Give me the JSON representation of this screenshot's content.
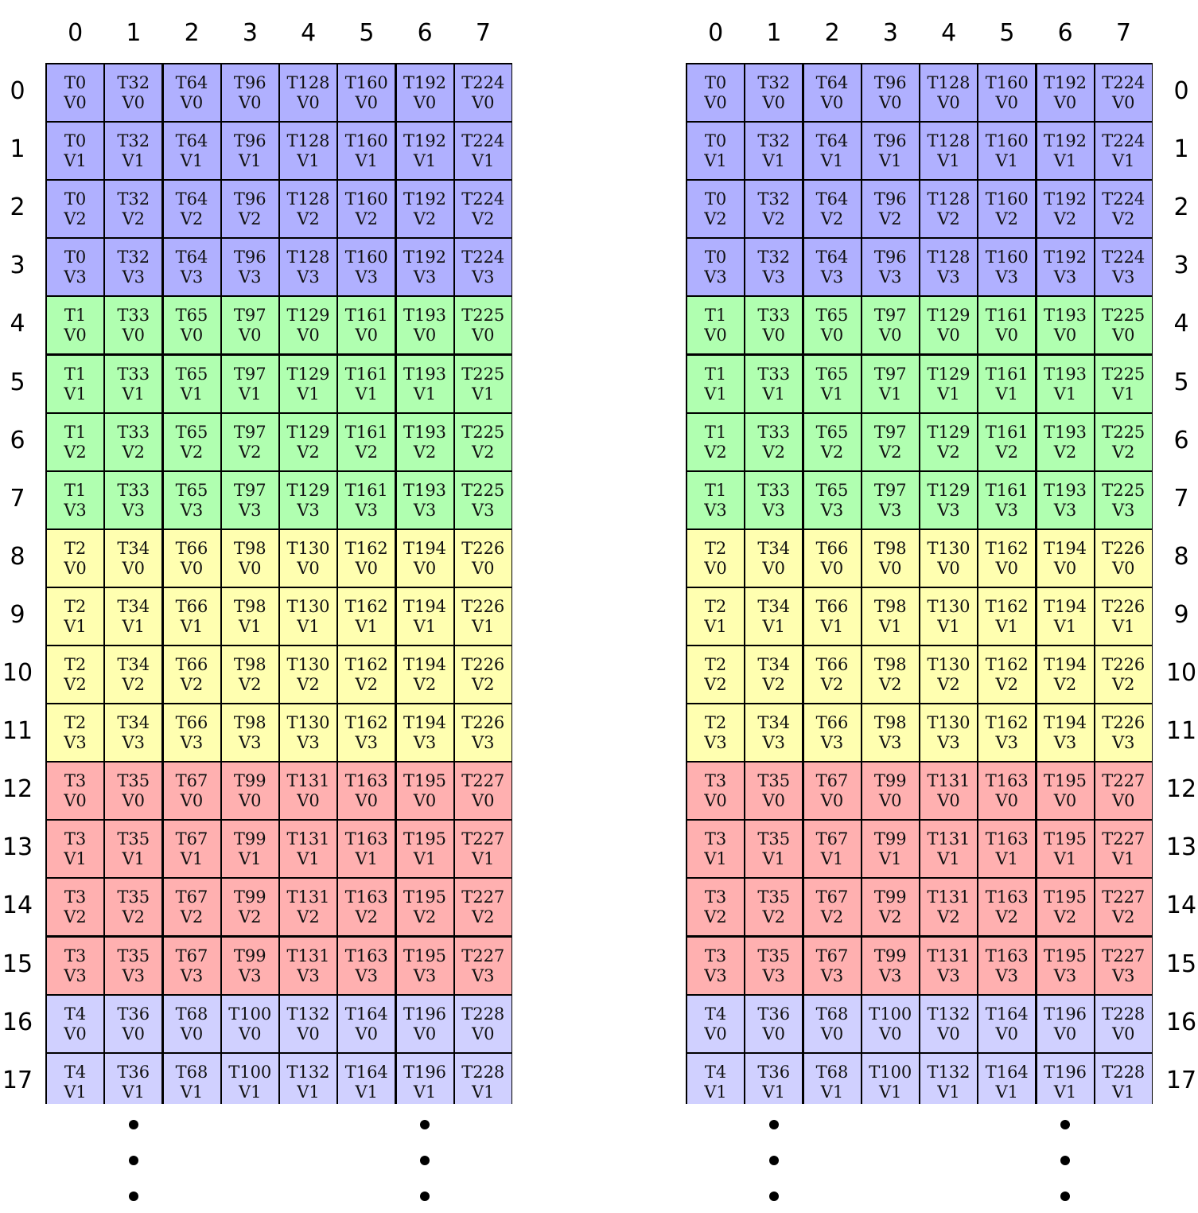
{
  "columns": [
    "0",
    "1",
    "2",
    "3",
    "4",
    "5",
    "6",
    "7"
  ],
  "rows": [
    "0",
    "1",
    "2",
    "3",
    "4",
    "5",
    "6",
    "7",
    "8",
    "9",
    "10",
    "11",
    "12",
    "13",
    "14",
    "15",
    "16",
    "17"
  ],
  "group_colors": [
    "#b0b0ff",
    "#b0ffb0",
    "#ffffb0",
    "#ffb0b0",
    "#d0d0ff"
  ],
  "cells": [
    [
      [
        "T0",
        "V0"
      ],
      [
        "T32",
        "V0"
      ],
      [
        "T64",
        "V0"
      ],
      [
        "T96",
        "V0"
      ],
      [
        "T128",
        "V0"
      ],
      [
        "T160",
        "V0"
      ],
      [
        "T192",
        "V0"
      ],
      [
        "T224",
        "V0"
      ]
    ],
    [
      [
        "T0",
        "V1"
      ],
      [
        "T32",
        "V1"
      ],
      [
        "T64",
        "V1"
      ],
      [
        "T96",
        "V1"
      ],
      [
        "T128",
        "V1"
      ],
      [
        "T160",
        "V1"
      ],
      [
        "T192",
        "V1"
      ],
      [
        "T224",
        "V1"
      ]
    ],
    [
      [
        "T0",
        "V2"
      ],
      [
        "T32",
        "V2"
      ],
      [
        "T64",
        "V2"
      ],
      [
        "T96",
        "V2"
      ],
      [
        "T128",
        "V2"
      ],
      [
        "T160",
        "V2"
      ],
      [
        "T192",
        "V2"
      ],
      [
        "T224",
        "V2"
      ]
    ],
    [
      [
        "T0",
        "V3"
      ],
      [
        "T32",
        "V3"
      ],
      [
        "T64",
        "V3"
      ],
      [
        "T96",
        "V3"
      ],
      [
        "T128",
        "V3"
      ],
      [
        "T160",
        "V3"
      ],
      [
        "T192",
        "V3"
      ],
      [
        "T224",
        "V3"
      ]
    ],
    [
      [
        "T1",
        "V0"
      ],
      [
        "T33",
        "V0"
      ],
      [
        "T65",
        "V0"
      ],
      [
        "T97",
        "V0"
      ],
      [
        "T129",
        "V0"
      ],
      [
        "T161",
        "V0"
      ],
      [
        "T193",
        "V0"
      ],
      [
        "T225",
        "V0"
      ]
    ],
    [
      [
        "T1",
        "V1"
      ],
      [
        "T33",
        "V1"
      ],
      [
        "T65",
        "V1"
      ],
      [
        "T97",
        "V1"
      ],
      [
        "T129",
        "V1"
      ],
      [
        "T161",
        "V1"
      ],
      [
        "T193",
        "V1"
      ],
      [
        "T225",
        "V1"
      ]
    ],
    [
      [
        "T1",
        "V2"
      ],
      [
        "T33",
        "V2"
      ],
      [
        "T65",
        "V2"
      ],
      [
        "T97",
        "V2"
      ],
      [
        "T129",
        "V2"
      ],
      [
        "T161",
        "V2"
      ],
      [
        "T193",
        "V2"
      ],
      [
        "T225",
        "V2"
      ]
    ],
    [
      [
        "T1",
        "V3"
      ],
      [
        "T33",
        "V3"
      ],
      [
        "T65",
        "V3"
      ],
      [
        "T97",
        "V3"
      ],
      [
        "T129",
        "V3"
      ],
      [
        "T161",
        "V3"
      ],
      [
        "T193",
        "V3"
      ],
      [
        "T225",
        "V3"
      ]
    ],
    [
      [
        "T2",
        "V0"
      ],
      [
        "T34",
        "V0"
      ],
      [
        "T66",
        "V0"
      ],
      [
        "T98",
        "V0"
      ],
      [
        "T130",
        "V0"
      ],
      [
        "T162",
        "V0"
      ],
      [
        "T194",
        "V0"
      ],
      [
        "T226",
        "V0"
      ]
    ],
    [
      [
        "T2",
        "V1"
      ],
      [
        "T34",
        "V1"
      ],
      [
        "T66",
        "V1"
      ],
      [
        "T98",
        "V1"
      ],
      [
        "T130",
        "V1"
      ],
      [
        "T162",
        "V1"
      ],
      [
        "T194",
        "V1"
      ],
      [
        "T226",
        "V1"
      ]
    ],
    [
      [
        "T2",
        "V2"
      ],
      [
        "T34",
        "V2"
      ],
      [
        "T66",
        "V2"
      ],
      [
        "T98",
        "V2"
      ],
      [
        "T130",
        "V2"
      ],
      [
        "T162",
        "V2"
      ],
      [
        "T194",
        "V2"
      ],
      [
        "T226",
        "V2"
      ]
    ],
    [
      [
        "T2",
        "V3"
      ],
      [
        "T34",
        "V3"
      ],
      [
        "T66",
        "V3"
      ],
      [
        "T98",
        "V3"
      ],
      [
        "T130",
        "V3"
      ],
      [
        "T162",
        "V3"
      ],
      [
        "T194",
        "V3"
      ],
      [
        "T226",
        "V3"
      ]
    ],
    [
      [
        "T3",
        "V0"
      ],
      [
        "T35",
        "V0"
      ],
      [
        "T67",
        "V0"
      ],
      [
        "T99",
        "V0"
      ],
      [
        "T131",
        "V0"
      ],
      [
        "T163",
        "V0"
      ],
      [
        "T195",
        "V0"
      ],
      [
        "T227",
        "V0"
      ]
    ],
    [
      [
        "T3",
        "V1"
      ],
      [
        "T35",
        "V1"
      ],
      [
        "T67",
        "V1"
      ],
      [
        "T99",
        "V1"
      ],
      [
        "T131",
        "V1"
      ],
      [
        "T163",
        "V1"
      ],
      [
        "T195",
        "V1"
      ],
      [
        "T227",
        "V1"
      ]
    ],
    [
      [
        "T3",
        "V2"
      ],
      [
        "T35",
        "V2"
      ],
      [
        "T67",
        "V2"
      ],
      [
        "T99",
        "V2"
      ],
      [
        "T131",
        "V2"
      ],
      [
        "T163",
        "V2"
      ],
      [
        "T195",
        "V2"
      ],
      [
        "T227",
        "V2"
      ]
    ],
    [
      [
        "T3",
        "V3"
      ],
      [
        "T35",
        "V3"
      ],
      [
        "T67",
        "V3"
      ],
      [
        "T99",
        "V3"
      ],
      [
        "T131",
        "V3"
      ],
      [
        "T163",
        "V3"
      ],
      [
        "T195",
        "V3"
      ],
      [
        "T227",
        "V3"
      ]
    ],
    [
      [
        "T4",
        "V0"
      ],
      [
        "T36",
        "V0"
      ],
      [
        "T68",
        "V0"
      ],
      [
        "T100",
        "V0"
      ],
      [
        "T132",
        "V0"
      ],
      [
        "T164",
        "V0"
      ],
      [
        "T196",
        "V0"
      ],
      [
        "T228",
        "V0"
      ]
    ],
    [
      [
        "T4",
        "V1"
      ],
      [
        "T36",
        "V1"
      ],
      [
        "T68",
        "V1"
      ],
      [
        "T100",
        "V1"
      ],
      [
        "T132",
        "V1"
      ],
      [
        "T164",
        "V1"
      ],
      [
        "T196",
        "V1"
      ],
      [
        "T228",
        "V1"
      ]
    ]
  ]
}
